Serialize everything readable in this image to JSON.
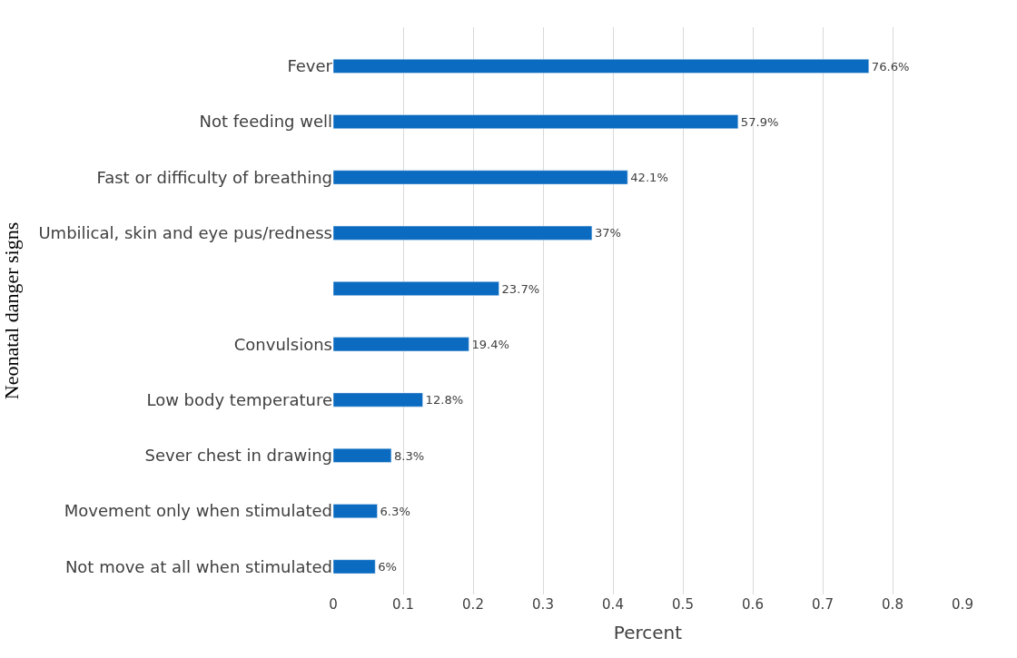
{
  "chart_data": {
    "type": "bar",
    "orientation": "horizontal",
    "xlabel": "Percent",
    "ylabel": "Neonatal danger signs",
    "categories": [
      "Fever",
      "Not feeding well",
      "Fast or difficulty of breathing",
      "Umbilical, skin and eye pus/redness",
      null,
      "Convulsions",
      "Low body temperature",
      "Sever chest in drawing",
      "Movement only when stimulated",
      "Not move at all when stimulated"
    ],
    "values": [
      0.766,
      0.579,
      0.421,
      0.37,
      0.237,
      0.194,
      0.128,
      0.083,
      0.063,
      0.06
    ],
    "value_labels": [
      "76.6%",
      "57.9%",
      "42.1%",
      "37%",
      "23.7%",
      "19.4%",
      "12.8%",
      "8.3%",
      "6.3%",
      "6%"
    ],
    "color": "#0a6bc0",
    "xlim": [
      0,
      0.9
    ],
    "xticks": [
      0,
      0.1,
      0.2,
      0.3,
      0.4,
      0.5,
      0.6,
      0.7,
      0.8,
      0.9
    ],
    "grid": "x"
  }
}
